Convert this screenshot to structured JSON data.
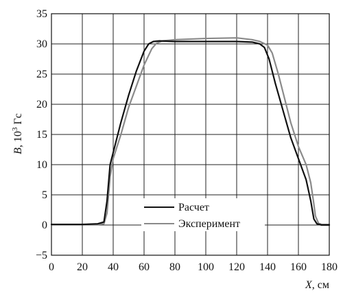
{
  "chart_data": {
    "type": "line",
    "title": "",
    "xlabel_italic": "X",
    "xlabel_unit": ", см",
    "ylabel_italic": "B",
    "ylabel_prefix": ", 10",
    "ylabel_sup": "3",
    "ylabel_unit": " Гс",
    "xlim": [
      0,
      180
    ],
    "ylim": [
      -5,
      35
    ],
    "xticks": [
      0,
      20,
      40,
      60,
      80,
      100,
      120,
      140,
      160,
      180
    ],
    "yticks": [
      -5,
      0,
      5,
      10,
      15,
      20,
      25,
      30,
      35
    ],
    "grid": true,
    "legend_position": "bottom-center",
    "series": [
      {
        "name": "Расчет",
        "color": "#111111",
        "x": [
          0,
          20,
          30,
          34,
          36,
          38,
          40,
          45,
          50,
          55,
          60,
          63,
          66,
          70,
          80,
          100,
          120,
          130,
          135,
          138,
          141,
          145,
          150,
          155,
          160,
          165,
          168,
          170,
          172,
          175,
          180
        ],
        "y": [
          0.1,
          0.1,
          0.2,
          0.5,
          4,
          10,
          12,
          17,
          21.5,
          25.5,
          28.8,
          30.0,
          30.4,
          30.5,
          30.4,
          30.4,
          30.4,
          30.3,
          30.0,
          29.4,
          27.5,
          23.5,
          19,
          14.5,
          11,
          7.5,
          4,
          1.0,
          0.2,
          0,
          0
        ]
      },
      {
        "name": "Эксперимент",
        "color": "#8a8a8a",
        "x": [
          0,
          20,
          30,
          34,
          36,
          38,
          40,
          45,
          50,
          55,
          60,
          65,
          68,
          72,
          80,
          100,
          120,
          130,
          135,
          140,
          143,
          147,
          150,
          155,
          160,
          165,
          168,
          170,
          171,
          173,
          175,
          180
        ],
        "y": [
          0.1,
          0.1,
          0.1,
          0.2,
          2,
          8,
          11,
          15,
          19.5,
          23,
          26.5,
          29.2,
          30.1,
          30.5,
          30.7,
          30.9,
          31.0,
          30.7,
          30.4,
          29.8,
          28.5,
          25,
          22,
          17,
          13,
          10,
          7,
          3.5,
          1.5,
          0.3,
          0.1,
          0.1
        ]
      }
    ]
  }
}
